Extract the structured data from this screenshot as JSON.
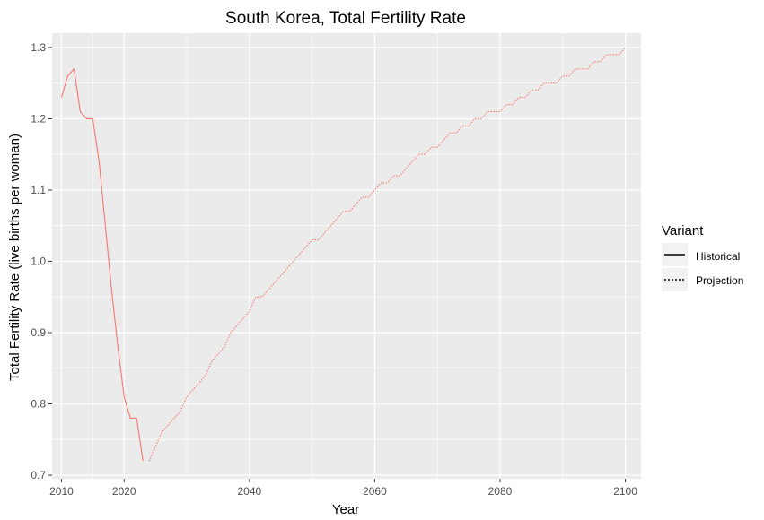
{
  "chart_data": {
    "type": "line",
    "title": "South Korea, Total Fertility Rate",
    "xlabel": "Year",
    "ylabel": "Total Fertility Rate (live births per woman)",
    "xlim": [
      2008.5,
      2102.5
    ],
    "ylim": [
      0.695,
      1.32
    ],
    "x_ticks": [
      2010,
      2020,
      2040,
      2060,
      2080,
      2100
    ],
    "x_tick_labels": [
      "2010",
      "2020",
      "2040",
      "2060",
      "2080",
      "2100"
    ],
    "x_minor_ticks": [
      2015,
      2030,
      2050,
      2070,
      2090
    ],
    "y_ticks": [
      0.7,
      0.8,
      0.9,
      1.0,
      1.1,
      1.2,
      1.3
    ],
    "y_tick_labels": [
      "0.7",
      "0.8",
      "0.9",
      "1.0",
      "1.1",
      "1.2",
      "1.3"
    ],
    "y_minor_ticks": [
      0.75,
      0.85,
      0.95,
      1.05,
      1.15,
      1.25
    ],
    "grid": true,
    "legend": {
      "title": "Variant",
      "position": "right",
      "entries": [
        "Historical",
        "Projection"
      ]
    },
    "line_color": "#f8766d",
    "panel_background": "#ebebeb",
    "grid_color": "#ffffff",
    "series": [
      {
        "name": "Historical",
        "linetype": "solid",
        "x": [
          2010,
          2011,
          2012,
          2013,
          2014,
          2015,
          2016,
          2017,
          2018,
          2019,
          2020,
          2021,
          2022,
          2023
        ],
        "values": [
          1.23,
          1.26,
          1.27,
          1.21,
          1.2,
          1.2,
          1.14,
          1.05,
          0.96,
          0.88,
          0.81,
          0.78,
          0.78,
          0.72
        ]
      },
      {
        "name": "Projection",
        "linetype": "dotted",
        "x": [
          2024,
          2025,
          2026,
          2027,
          2028,
          2029,
          2030,
          2031,
          2032,
          2033,
          2034,
          2035,
          2036,
          2037,
          2038,
          2039,
          2040,
          2041,
          2042,
          2043,
          2044,
          2045,
          2046,
          2047,
          2048,
          2049,
          2050,
          2051,
          2052,
          2053,
          2054,
          2055,
          2056,
          2057,
          2058,
          2059,
          2060,
          2061,
          2062,
          2063,
          2064,
          2065,
          2066,
          2067,
          2068,
          2069,
          2070,
          2071,
          2072,
          2073,
          2074,
          2075,
          2076,
          2077,
          2078,
          2079,
          2080,
          2081,
          2082,
          2083,
          2084,
          2085,
          2086,
          2087,
          2088,
          2089,
          2090,
          2091,
          2092,
          2093,
          2094,
          2095,
          2096,
          2097,
          2098,
          2099,
          2100
        ],
        "values": [
          0.72,
          0.74,
          0.76,
          0.77,
          0.78,
          0.79,
          0.81,
          0.82,
          0.83,
          0.84,
          0.86,
          0.87,
          0.88,
          0.9,
          0.91,
          0.92,
          0.93,
          0.95,
          0.95,
          0.96,
          0.97,
          0.98,
          0.99,
          1.0,
          1.01,
          1.02,
          1.03,
          1.03,
          1.04,
          1.05,
          1.06,
          1.07,
          1.07,
          1.08,
          1.09,
          1.09,
          1.1,
          1.11,
          1.11,
          1.12,
          1.12,
          1.13,
          1.14,
          1.15,
          1.15,
          1.16,
          1.16,
          1.17,
          1.18,
          1.18,
          1.19,
          1.19,
          1.2,
          1.2,
          1.21,
          1.21,
          1.21,
          1.22,
          1.22,
          1.23,
          1.23,
          1.24,
          1.24,
          1.25,
          1.25,
          1.25,
          1.26,
          1.26,
          1.27,
          1.27,
          1.27,
          1.28,
          1.28,
          1.29,
          1.29,
          1.29,
          1.3
        ]
      }
    ]
  }
}
